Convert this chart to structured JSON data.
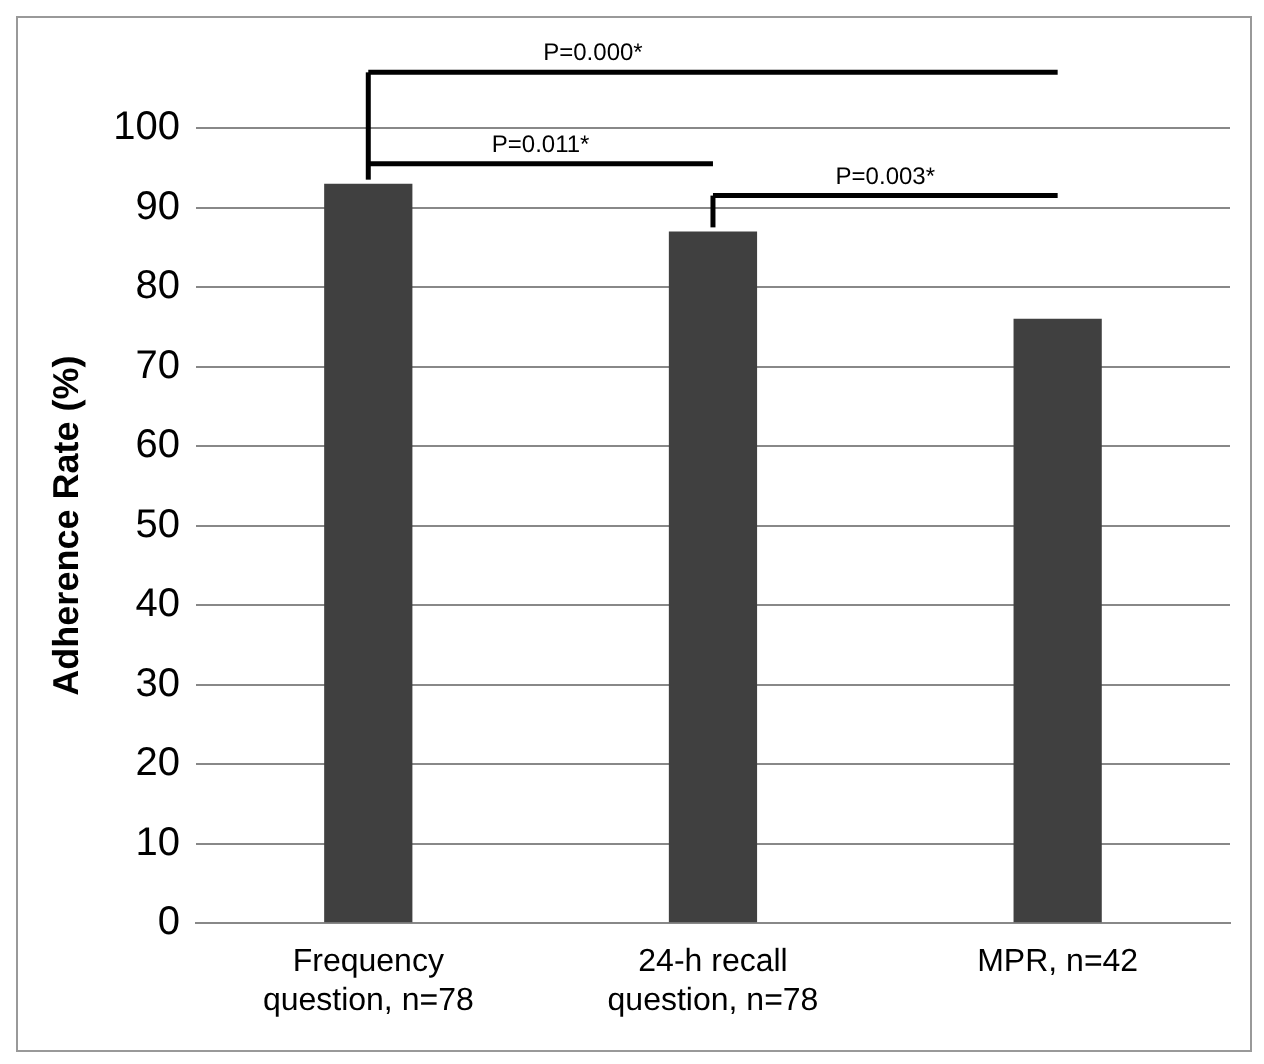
{
  "chart_data": {
    "type": "bar",
    "ylabel": "Adherence Rate (%)",
    "categories": [
      "Frequency question, n=78",
      "24-h recall question, n=78",
      "MPR, n=42"
    ],
    "values": [
      93,
      87,
      76
    ],
    "color": "#404040",
    "ylim": [
      0,
      100
    ],
    "yticks": [
      0,
      10,
      20,
      30,
      40,
      50,
      60,
      70,
      80,
      90,
      100
    ],
    "grid": "y",
    "legend": false,
    "annotations": [
      "P=0.000*",
      "P=0.011*",
      "P=0.003*"
    ]
  }
}
